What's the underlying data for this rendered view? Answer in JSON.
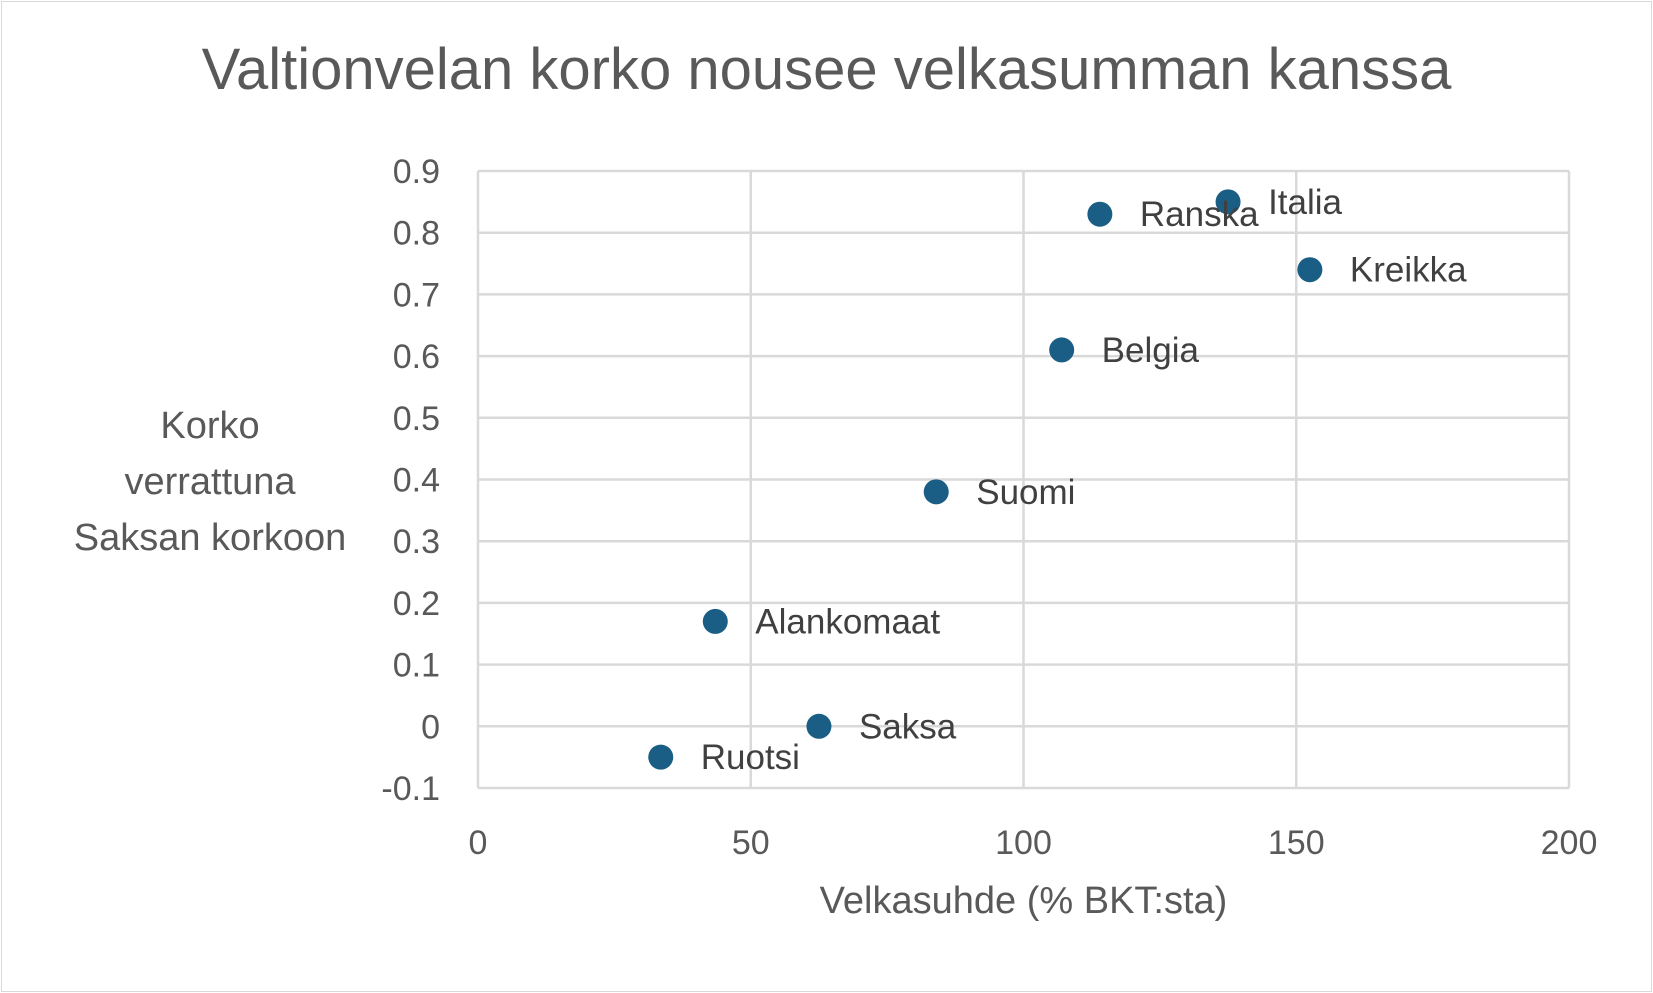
{
  "chart_data": {
    "type": "scatter",
    "title": "Valtionvelan korko nousee velkasumman kanssa",
    "xlabel": "Velkasuhde (% BKT:sta)",
    "ylabel_lines": [
      "Korko",
      "verrattuna",
      "Saksan korkoon"
    ],
    "xlim": [
      0,
      200
    ],
    "ylim": [
      -0.1,
      0.9
    ],
    "x_ticks": [
      0,
      50,
      100,
      150,
      200
    ],
    "x_tick_labels": [
      "0",
      "50",
      "100",
      "150",
      "200"
    ],
    "y_ticks": [
      -0.1,
      0,
      0.1,
      0.2,
      0.3,
      0.4,
      0.5,
      0.6,
      0.7,
      0.8,
      0.9
    ],
    "y_tick_labels": [
      "-0.1",
      "0",
      "0.1",
      "0.2",
      "0.3",
      "0.4",
      "0.5",
      "0.6",
      "0.7",
      "0.8",
      "0.9"
    ],
    "grid": true,
    "marker_color": "#1a5e85",
    "points": [
      {
        "label": "Italia",
        "x": 137.5,
        "y": 0.85
      },
      {
        "label": "Ranska",
        "x": 114,
        "y": 0.83
      },
      {
        "label": "Kreikka",
        "x": 152.5,
        "y": 0.74
      },
      {
        "label": "Belgia",
        "x": 107,
        "y": 0.61
      },
      {
        "label": "Suomi",
        "x": 84,
        "y": 0.38
      },
      {
        "label": "Alankomaat",
        "x": 43.5,
        "y": 0.17
      },
      {
        "label": "Saksa",
        "x": 62.5,
        "y": 0.0
      },
      {
        "label": "Ruotsi",
        "x": 33.5,
        "y": -0.05
      }
    ]
  }
}
